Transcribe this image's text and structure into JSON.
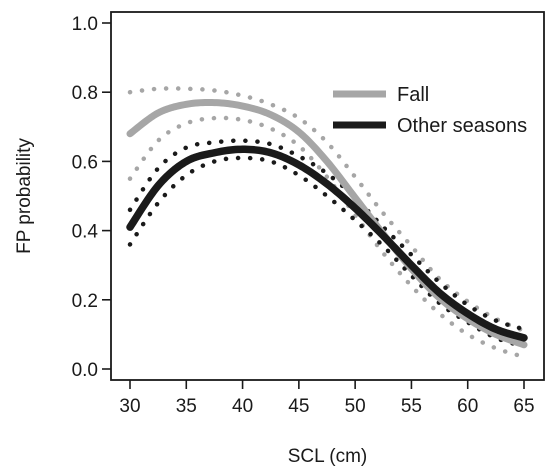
{
  "chart_data": {
    "type": "line",
    "title": "",
    "xlabel": "SCL (cm)",
    "ylabel": "FP probability",
    "xlim": [
      30,
      65
    ],
    "ylim": [
      0.0,
      1.0
    ],
    "xticks": [
      30,
      35,
      40,
      45,
      50,
      55,
      60,
      65
    ],
    "yticks": [
      0.0,
      0.2,
      0.4,
      0.6,
      0.8,
      1.0
    ],
    "xtick_labels": [
      "30",
      "35",
      "40",
      "45",
      "50",
      "55",
      "60",
      "65"
    ],
    "ytick_labels": [
      "0.0",
      "0.2",
      "0.4",
      "0.6",
      "0.8",
      "1.0"
    ],
    "grid": false,
    "legend_position": "top-right",
    "x": [
      30,
      32.5,
      35,
      37.5,
      40,
      42.5,
      45,
      47.5,
      50,
      52.5,
      55,
      57.5,
      60,
      62.5,
      65
    ],
    "series": [
      {
        "name": "Fall",
        "color": "#a6a6a6",
        "values": [
          0.68,
          0.74,
          0.765,
          0.77,
          0.76,
          0.735,
          0.685,
          0.6,
          0.495,
          0.39,
          0.29,
          0.205,
          0.145,
          0.1,
          0.07
        ],
        "ci_upper": [
          0.8,
          0.81,
          0.81,
          0.805,
          0.79,
          0.765,
          0.725,
          0.655,
          0.555,
          0.45,
          0.355,
          0.26,
          0.195,
          0.145,
          0.11
        ],
        "ci_lower": [
          0.55,
          0.66,
          0.71,
          0.725,
          0.72,
          0.695,
          0.645,
          0.555,
          0.445,
          0.335,
          0.24,
          0.16,
          0.1,
          0.06,
          0.035
        ]
      },
      {
        "name": "Other seasons",
        "color": "#1a1a1a",
        "values": [
          0.41,
          0.53,
          0.6,
          0.625,
          0.635,
          0.625,
          0.59,
          0.535,
          0.465,
          0.385,
          0.3,
          0.22,
          0.16,
          0.115,
          0.09
        ],
        "ci_upper": [
          0.46,
          0.58,
          0.64,
          0.655,
          0.66,
          0.65,
          0.615,
          0.565,
          0.495,
          0.41,
          0.33,
          0.25,
          0.185,
          0.14,
          0.115
        ],
        "ci_lower": [
          0.36,
          0.48,
          0.56,
          0.6,
          0.61,
          0.6,
          0.56,
          0.5,
          0.43,
          0.355,
          0.27,
          0.19,
          0.135,
          0.09,
          0.065
        ]
      }
    ]
  }
}
